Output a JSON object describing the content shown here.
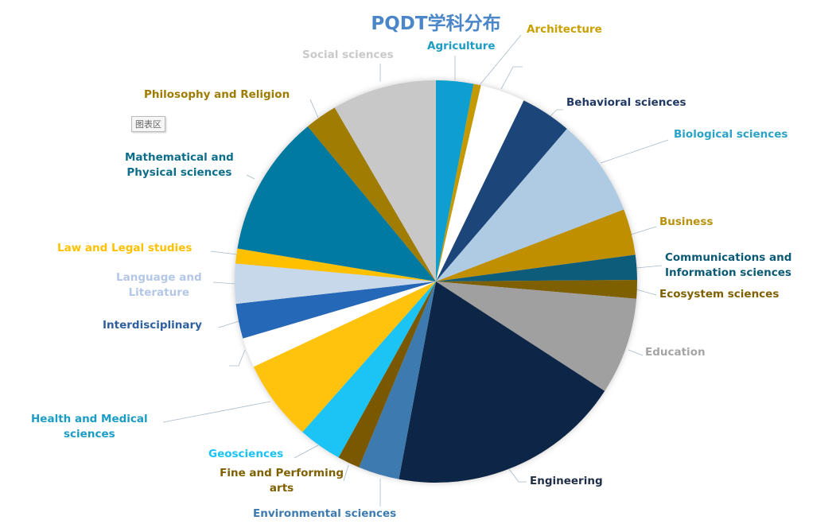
{
  "chart_data": {
    "type": "pie",
    "title": "PQDT学科分布",
    "title_color": "#4a86c8",
    "unit": "percent (estimated from slice angles)",
    "slices": [
      {
        "label": "Agriculture",
        "value": 3.0,
        "color": "#0f9fcf",
        "label_color": "#1a9cc4"
      },
      {
        "label": "Architecture",
        "value": 0.6,
        "color": "#c49a00",
        "label_color": "#c9a000"
      },
      {
        "label": "",
        "value": 3.6,
        "color": "#ffffff",
        "label_color": "#ffffff"
      },
      {
        "label": "Behavioral sciences",
        "value": 4.1,
        "color": "#1b4579",
        "label_color": "#1f3864"
      },
      {
        "label": "Biological sciences",
        "value": 7.9,
        "color": "#aecbe3",
        "label_color": "#2aa3c6"
      },
      {
        "label": "Business",
        "value": 3.7,
        "color": "#bf8f00",
        "label_color": "#b8920a"
      },
      {
        "label": "Communications and\nInformation sciences",
        "value": 2.0,
        "color": "#0b5c7a",
        "label_color": "#0b5a75"
      },
      {
        "label": "Ecosystem sciences",
        "value": 1.5,
        "color": "#7f6000",
        "label_color": "#7f6000"
      },
      {
        "label": "Education",
        "value": 7.8,
        "color": "#a0a0a0",
        "label_color": "#a5a5a5"
      },
      {
        "label": "Engineering",
        "value": 18.8,
        "color": "#0f2846",
        "label_color": "#1f2d47"
      },
      {
        "label": "Environmental sciences",
        "value": 3.3,
        "color": "#3d7ab0",
        "label_color": "#3c7ab0"
      },
      {
        "label": "Fine and Performing\narts",
        "value": 1.8,
        "color": "#7a5800",
        "label_color": "#7f6000"
      },
      {
        "label": "Geosciences",
        "value": 3.5,
        "color": "#1ac3f5",
        "label_color": "#1ac3f5"
      },
      {
        "label": "Health and Medical\nsciences",
        "value": 6.5,
        "color": "#ffc20e",
        "label_color": "#1a9cc4"
      },
      {
        "label": "",
        "value": 2.4,
        "color": "#ffffff",
        "label_color": "#ffffff"
      },
      {
        "label": "Interdisciplinary",
        "value": 2.8,
        "color": "#2868b8",
        "label_color": "#2e5f9e"
      },
      {
        "label": "Language and\nLiterature",
        "value": 3.2,
        "color": "#c7d8ea",
        "label_color": "#b4c7e7"
      },
      {
        "label": "Law and Legal studies",
        "value": 1.2,
        "color": "#ffc000",
        "label_color": "#ffc000"
      },
      {
        "label": "Mathematical and\nPhysical sciences",
        "value": 11.4,
        "color": "#027aa0",
        "label_color": "#0d6e8a"
      },
      {
        "label": "Philosophy and Religion",
        "value": 2.6,
        "color": "#a07c00",
        "label_color": "#9e7c00"
      },
      {
        "label": "Social sciences",
        "value": 8.4,
        "color": "#c8c8c8",
        "label_color": "#c9c9c9"
      }
    ],
    "legend": "none (data labels with leader lines)"
  },
  "tooltip": {
    "text": "图表区"
  }
}
